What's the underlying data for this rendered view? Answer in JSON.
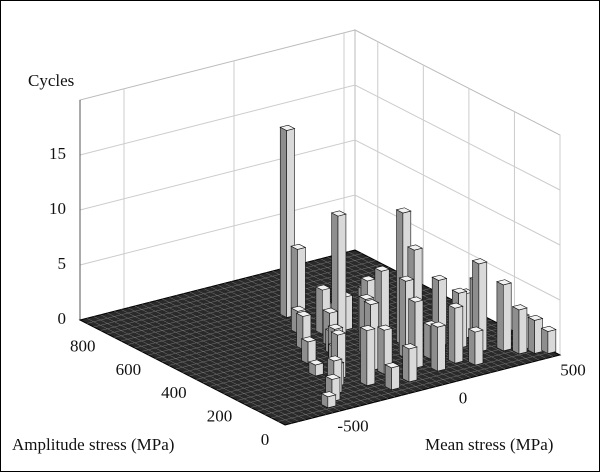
{
  "chart_data": {
    "type": "bar3d",
    "zlabel": "Cycles",
    "xlabel": "Mean stress (MPa)",
    "ylabel": "Amplitude stress (MPa)",
    "xlim": [
      -700,
      550
    ],
    "ylim": [
      0,
      900
    ],
    "zlim": [
      0,
      20
    ],
    "xticks": [
      -500,
      0,
      500
    ],
    "yticks": [
      0,
      200,
      400,
      600,
      800
    ],
    "zticks": [
      0,
      5,
      10,
      15
    ],
    "grid": true,
    "color": "#d9d9d9",
    "x": [
      -40,
      -60,
      0,
      150,
      160,
      120,
      340,
      360,
      420,
      450,
      500,
      540,
      480,
      300,
      250,
      200,
      100,
      60,
      20,
      -30,
      -80,
      -120,
      -160,
      -200,
      -250,
      -300,
      -350,
      -400,
      -450,
      -200,
      -100,
      0,
      50,
      100,
      -50,
      -150,
      200,
      250,
      380,
      30,
      -20,
      80,
      -300,
      -250,
      -180,
      -100,
      -80,
      150
    ],
    "y": [
      627,
      560,
      440,
      300,
      260,
      380,
      150,
      180,
      120,
      80,
      60,
      40,
      100,
      200,
      240,
      320,
      420,
      470,
      520,
      480,
      400,
      350,
      300,
      260,
      200,
      160,
      120,
      80,
      50,
      120,
      200,
      250,
      150,
      100,
      80,
      60,
      120,
      80,
      250,
      340,
      300,
      220,
      250,
      330,
      420,
      520,
      160,
      180
    ],
    "values": [
      17,
      7,
      11,
      12,
      9,
      5,
      8,
      6,
      6,
      4,
      3,
      2,
      3,
      5,
      6,
      7,
      4,
      3,
      2,
      4,
      3,
      2,
      3,
      2,
      4,
      2,
      3,
      2,
      1,
      5,
      6,
      8,
      6,
      4,
      3,
      2,
      5,
      3,
      4,
      6,
      5,
      7,
      1,
      2,
      3,
      2,
      4,
      3
    ]
  }
}
